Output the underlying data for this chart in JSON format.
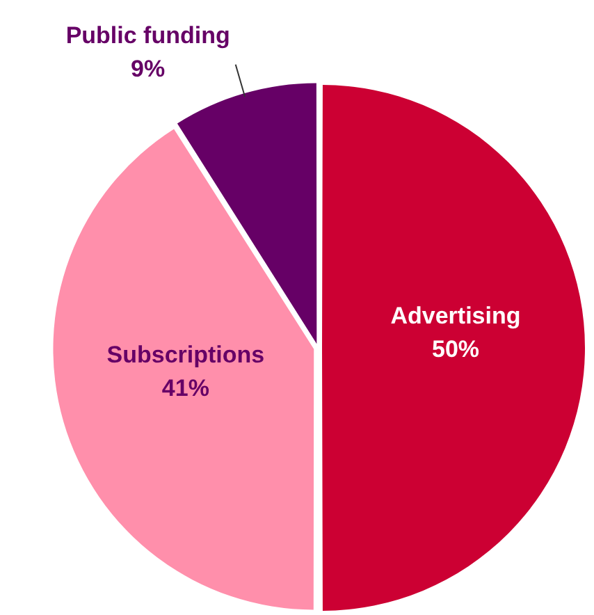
{
  "chart_data": {
    "type": "pie",
    "categories": [
      "Advertising",
      "Subscriptions",
      "Public funding"
    ],
    "values": [
      50,
      41,
      9
    ],
    "colors": [
      "#cc0033",
      "#ff8fab",
      "#660066"
    ],
    "value_labels": [
      "50%",
      "41%",
      "9%"
    ],
    "legend": false
  }
}
